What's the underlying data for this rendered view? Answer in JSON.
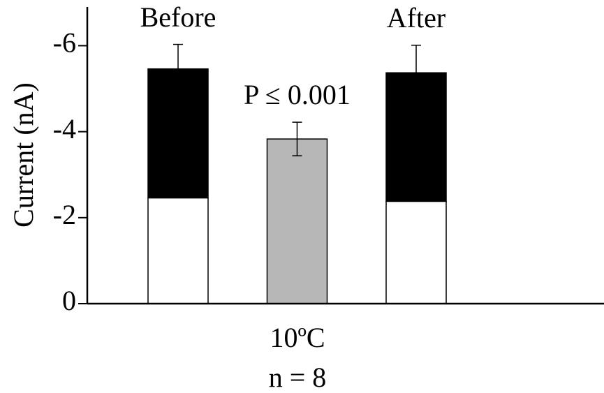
{
  "chart_data": {
    "type": "stacked_bar",
    "ylabel": "Current (nA)",
    "categories": [
      "Before",
      "P ≤ 0.001",
      "After"
    ],
    "xlabel_lines": [
      "10ºC",
      "n = 8"
    ],
    "series": [
      {
        "color": "#ffffff",
        "values": [
          -2.46,
          null,
          -2.38
        ]
      },
      {
        "color": "#000000",
        "values": [
          -3.0,
          null,
          -2.99
        ],
        "errors": [
          0.57,
          null,
          0.64
        ]
      },
      {
        "color": "#b7b7b7",
        "values": [
          null,
          -3.83,
          null
        ],
        "errors": [
          null,
          0.39,
          null
        ]
      }
    ],
    "ylim": [
      0,
      -6.9
    ],
    "yticks": [
      0,
      -2,
      -4,
      -6
    ]
  }
}
